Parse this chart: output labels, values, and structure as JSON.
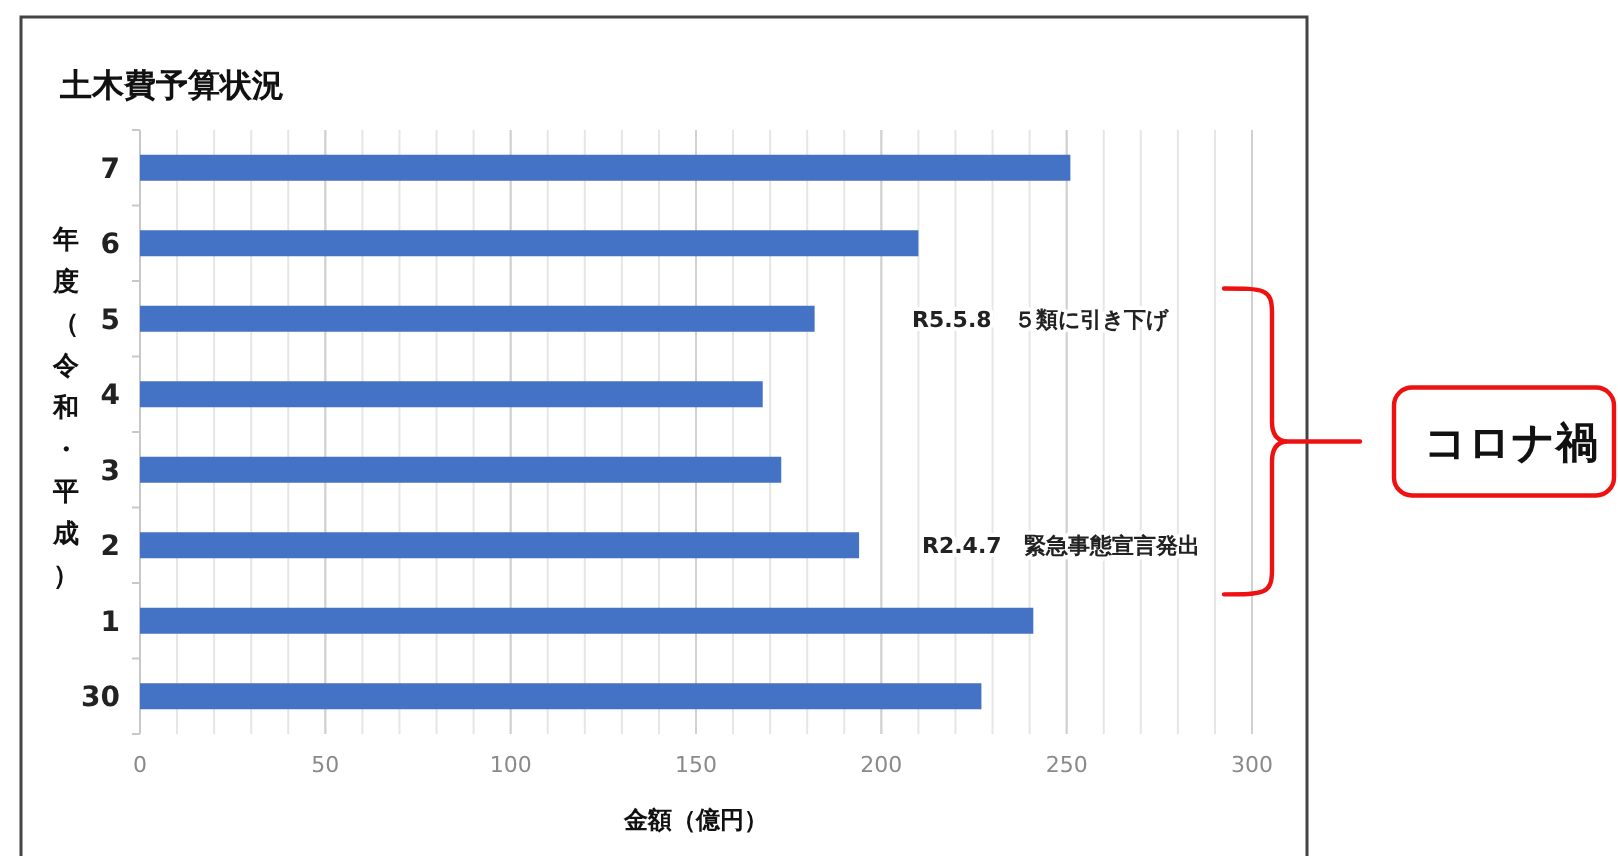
{
  "chart_data": {
    "type": "bar",
    "orientation": "horizontal",
    "title": "土木費予算状況",
    "xlabel": "金額（億円）",
    "ylabel": "年度（令和・平成）",
    "categories": [
      "7",
      "6",
      "5",
      "4",
      "3",
      "2",
      "1",
      "30"
    ],
    "series": [
      {
        "color": "#4472c4",
        "values": [
          251,
          210,
          182,
          168,
          173,
          194,
          241,
          227
        ]
      }
    ],
    "xlim": [
      0,
      300
    ],
    "xticks": [
      0,
      50,
      100,
      150,
      200,
      250,
      300
    ],
    "grid": "x",
    "annotations": [
      "R5.5.8　５類に引き下げ",
      "R2.4.7　緊急事態宣言発出",
      "コロナ禍"
    ]
  }
}
